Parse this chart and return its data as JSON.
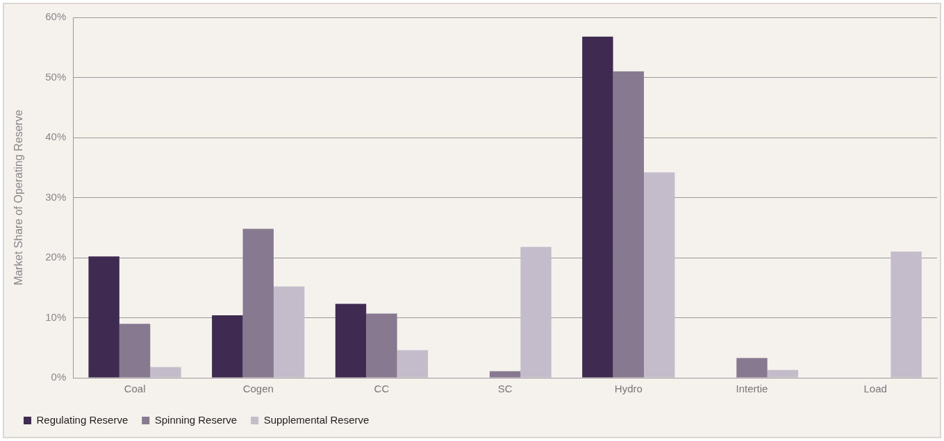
{
  "chart_data": {
    "type": "bar",
    "ylabel": "Market Share of Operating Reserve",
    "categories": [
      "Coal",
      "Cogen",
      "CC",
      "SC",
      "Hydro",
      "Intertie",
      "Load"
    ],
    "series": [
      {
        "name": "Regulating Reserve",
        "color": "#3f2a52",
        "values": [
          20.2,
          10.4,
          12.3,
          0,
          56.8,
          0,
          0
        ]
      },
      {
        "name": "Spinning Reserve",
        "color": "#877a90",
        "values": [
          9.0,
          24.8,
          10.7,
          1.1,
          51.0,
          3.3,
          0
        ]
      },
      {
        "name": "Supplemental Reserve",
        "color": "#c4bccb",
        "values": [
          1.8,
          15.2,
          4.6,
          21.8,
          34.2,
          1.3,
          21.0
        ]
      }
    ],
    "ylim": [
      0,
      60
    ],
    "yticks": [
      {
        "value": 0,
        "label": "0%"
      },
      {
        "value": 10,
        "label": "10%"
      },
      {
        "value": 20,
        "label": "20%"
      },
      {
        "value": 30,
        "label": "30%"
      },
      {
        "value": 40,
        "label": "40%"
      },
      {
        "value": 50,
        "label": "50%"
      },
      {
        "value": 60,
        "label": "60%"
      }
    ],
    "grid": "y",
    "legend": "bottom"
  }
}
